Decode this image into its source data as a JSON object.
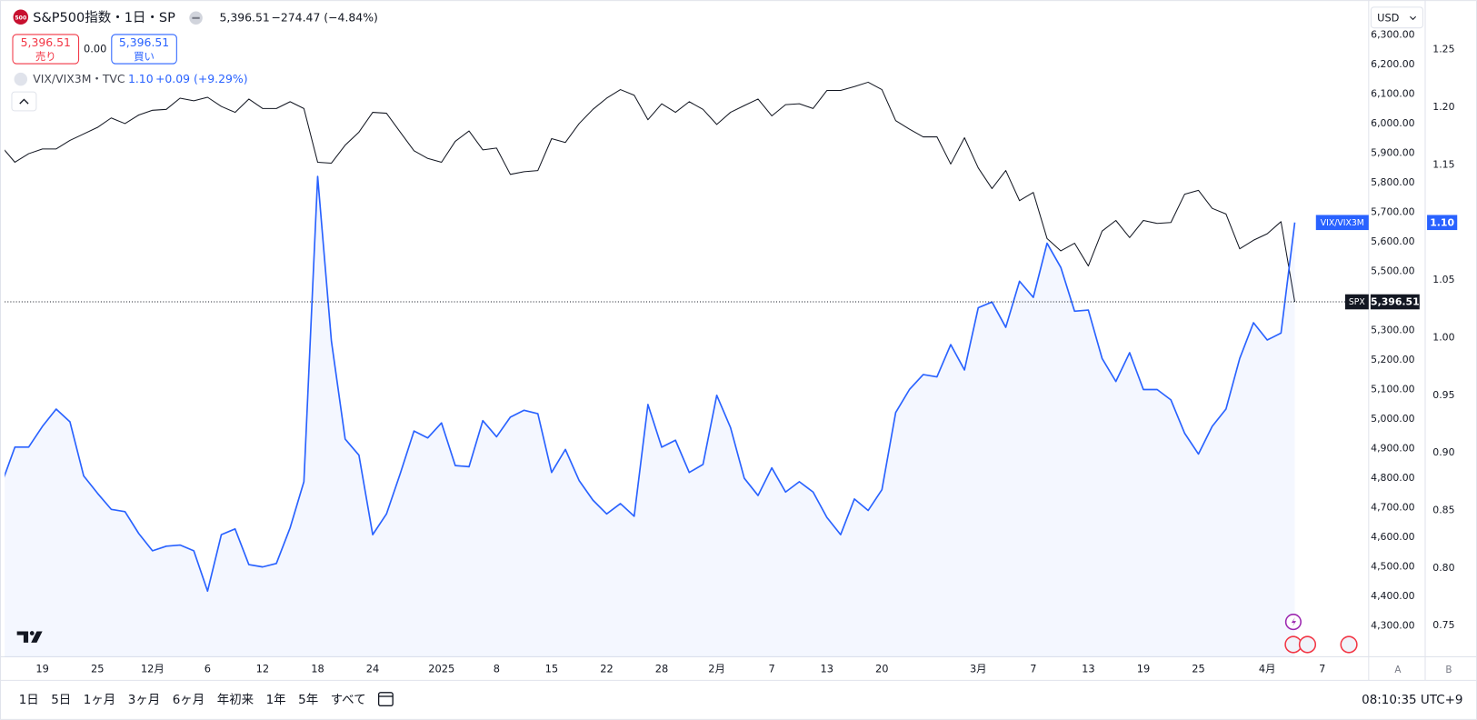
{
  "header": {
    "icon": "500",
    "change": "−274.47 (−4.84%)",
    "sell": {
      "price": "5,396.51",
      "label": "売り"
    },
    "spread": "0.00",
    "buy": {
      "price": "5,396.51",
      "label": "買い"
    },
    "indicator_change": "+0.09 (+9.29%)",
    "currency": "USD"
  },
  "chart_data": {
    "type": "line",
    "grid": false,
    "categories": [
      null,
      null,
      null,
      "19",
      null,
      null,
      null,
      "25",
      null,
      null,
      null,
      "12月",
      null,
      null,
      null,
      "6",
      null,
      null,
      null,
      "12",
      null,
      null,
      null,
      "18",
      null,
      null,
      null,
      "24",
      null,
      null,
      null,
      null,
      "2025",
      null,
      null,
      null,
      "8",
      null,
      null,
      null,
      "15",
      null,
      null,
      null,
      "22",
      null,
      null,
      null,
      "28",
      null,
      null,
      null,
      "2月",
      null,
      null,
      null,
      "7",
      null,
      null,
      null,
      "13",
      null,
      null,
      null,
      "20",
      null,
      null,
      null,
      null,
      null,
      null,
      "3月",
      null,
      null,
      null,
      "7",
      null,
      null,
      null,
      "13",
      null,
      null,
      null,
      "19",
      null,
      null,
      null,
      "25",
      null,
      null,
      null,
      null,
      "4月",
      null,
      null,
      null,
      "7"
    ],
    "series": [
      {
        "name": "S&P500指数・1日・SP",
        "color": "#131722",
        "axis": "y",
        "tag": "SPX",
        "last_label": "5,396.51",
        "values": [
          5924,
          5869,
          5898,
          5914,
          5914,
          5943,
          5965,
          5987,
          6019,
          6000,
          6029,
          6045,
          6048,
          6086,
          6077,
          6089,
          6058,
          6038,
          6083,
          6051,
          6051,
          6074,
          6051,
          5869,
          5866,
          5927,
          5971,
          6038,
          6035,
          5971,
          5908,
          5882,
          5869,
          5940,
          5975,
          5911,
          5917,
          5828,
          5837,
          5841,
          5949,
          5936,
          6000,
          6048,
          6086,
          6115,
          6096,
          6013,
          6067,
          6038,
          6074,
          6048,
          5997,
          6038,
          6061,
          6083,
          6026,
          6064,
          6067,
          6051,
          6112,
          6112,
          6125,
          6140,
          6115,
          6010,
          5981,
          5955,
          5955,
          5863,
          5952,
          5850,
          5780,
          5841,
          5739,
          5767,
          5611,
          5569,
          5595,
          5518,
          5636,
          5672,
          5614,
          5672,
          5662,
          5665,
          5761,
          5774,
          5713,
          5694,
          5576,
          5605,
          5627,
          5668,
          5396.51,
          null,
          null
        ]
      },
      {
        "name": "VIX/VIX3M・TVC",
        "color": "#2962ff",
        "axis": "y2",
        "area": true,
        "tag": "VIX/VIX3M",
        "last_label": "1.10",
        "values": [
          0.872,
          0.905,
          0.905,
          0.923,
          0.938,
          0.927,
          0.88,
          0.865,
          0.851,
          0.849,
          0.83,
          0.815,
          0.819,
          0.82,
          0.815,
          0.78,
          0.829,
          0.834,
          0.803,
          0.801,
          0.804,
          0.835,
          0.875,
          1.14,
          0.997,
          0.912,
          0.898,
          0.829,
          0.847,
          0.882,
          0.919,
          0.913,
          0.926,
          0.889,
          0.888,
          0.928,
          0.914,
          0.931,
          0.937,
          0.934,
          0.883,
          0.903,
          0.876,
          0.859,
          0.847,
          0.856,
          0.845,
          0.942,
          0.905,
          0.911,
          0.883,
          0.89,
          0.95,
          0.922,
          0.878,
          0.863,
          0.887,
          0.866,
          0.875,
          0.866,
          0.844,
          0.829,
          0.86,
          0.85,
          0.868,
          0.935,
          0.955,
          0.968,
          0.966,
          0.994,
          0.972,
          1.026,
          1.031,
          1.009,
          1.049,
          1.035,
          1.082,
          1.061,
          1.023,
          1.024,
          0.982,
          0.962,
          0.987,
          0.955,
          0.955,
          0.946,
          0.917,
          0.899,
          0.923,
          0.938,
          0.982,
          1.013,
          0.998,
          1.004,
          1.1,
          null,
          null
        ]
      }
    ],
    "ylim": [
      4195,
      6402
    ],
    "yticks": [
      {
        "value": 4300,
        "label": "4,300.00"
      },
      {
        "value": 4400,
        "label": "4,400.00"
      },
      {
        "value": 4500,
        "label": "4,500.00"
      },
      {
        "value": 4600,
        "label": "4,600.00"
      },
      {
        "value": 4700,
        "label": "4,700.00"
      },
      {
        "value": 4800,
        "label": "4,800.00"
      },
      {
        "value": 4900,
        "label": "4,900.00"
      },
      {
        "value": 5000,
        "label": "5,000.00"
      },
      {
        "value": 5100,
        "label": "5,100.00"
      },
      {
        "value": 5200,
        "label": "5,200.00"
      },
      {
        "value": 5300,
        "label": "5,300.00"
      },
      {
        "value": 5400,
        "label": "5,400.00"
      },
      {
        "value": 5500,
        "label": "5,500.00"
      },
      {
        "value": 5600,
        "label": "5,600.00"
      },
      {
        "value": 5700,
        "label": "5,700.00"
      },
      {
        "value": 5800,
        "label": "5,800.00"
      },
      {
        "value": 5900,
        "label": "5,900.00"
      },
      {
        "value": 6000,
        "label": "6,000.00"
      },
      {
        "value": 6100,
        "label": "6,100.00"
      },
      {
        "value": 6200,
        "label": "6,200.00"
      },
      {
        "value": 6300,
        "label": "6,300.00"
      }
    ],
    "y2lim": [
      0.723,
      1.289
    ],
    "y2ticks": [
      0.75,
      {
        "value": 0.8,
        "label": "0.80"
      },
      0.85,
      {
        "value": 0.9,
        "label": "0.90"
      },
      0.95,
      {
        "value": 1,
        "label": "1.00"
      },
      1.05,
      {
        "value": 1.1,
        "label": "1.10"
      },
      1.15,
      {
        "value": 1.2,
        "label": "1.20"
      },
      1.25
    ]
  },
  "footer": {
    "ranges": [
      "1日",
      "5日",
      "1ヶ月",
      "3ヶ月",
      "6ヶ月",
      "年初来",
      "1年",
      "5年",
      "すべて"
    ],
    "time": "08:10:35 UTC+9",
    "scale_buttons": [
      "A",
      "B"
    ]
  }
}
